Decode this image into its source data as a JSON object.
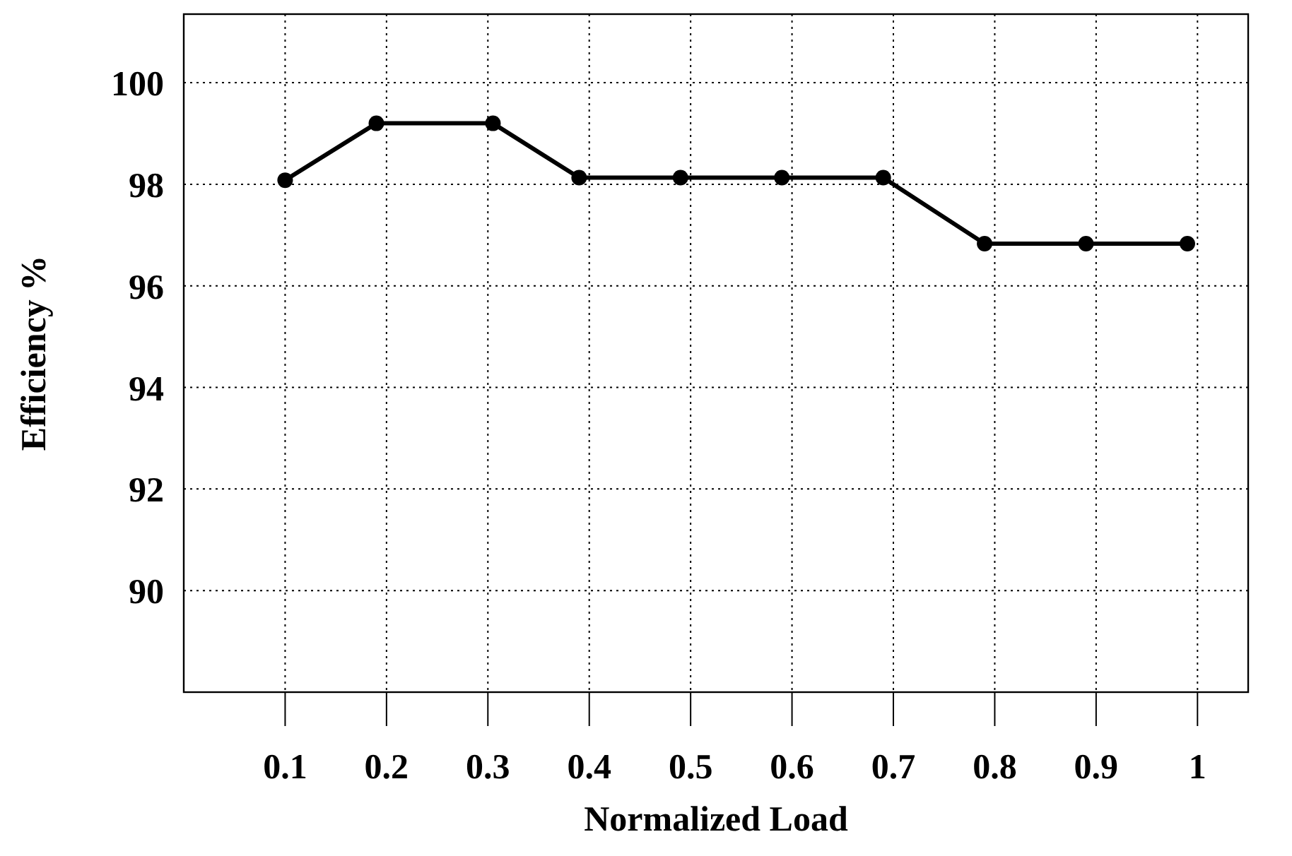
{
  "chart_data": {
    "type": "line",
    "xlabel": "Normalized Load",
    "ylabel": "Efficiency %",
    "x": [
      0.1,
      0.19,
      0.305,
      0.39,
      0.49,
      0.59,
      0.69,
      0.79,
      0.89,
      0.99
    ],
    "series": [
      {
        "color": "#000000",
        "values": [
          98.08,
          99.2,
          99.2,
          98.13,
          98.13,
          98.13,
          98.13,
          96.83,
          96.83,
          96.83
        ]
      }
    ],
    "xlim": [
      0,
      1.05
    ],
    "ylim": [
      88,
      101.35
    ],
    "xticks": [
      0.1,
      0.2,
      0.3,
      0.4,
      0.5,
      0.6,
      0.7,
      0.8,
      0.9,
      1
    ],
    "yticks": [
      90,
      92,
      94,
      96,
      98,
      100
    ],
    "grid": true,
    "marker": "circle",
    "line_style": "solid"
  }
}
